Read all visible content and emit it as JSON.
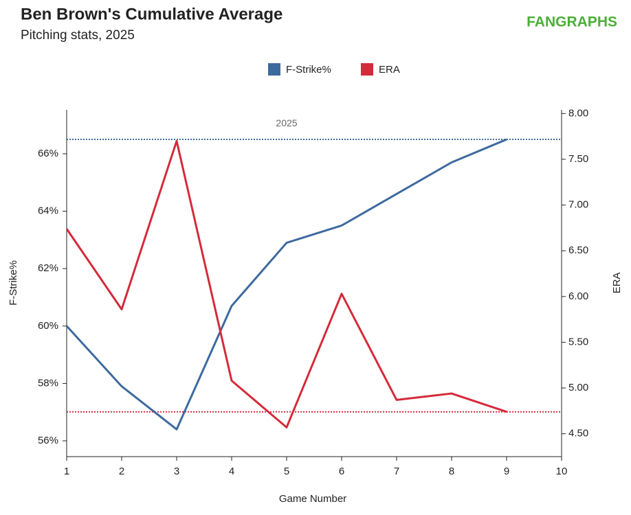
{
  "chart_data": {
    "type": "line",
    "title": "Ben Brown's Cumulative Average",
    "subtitle": "Pitching stats, 2025",
    "logo": "FANGRAPHS",
    "x_label": "Game Number",
    "y_label": "F-Strike%",
    "y2_label": "ERA",
    "x": [
      1,
      2,
      3,
      4,
      5,
      6,
      7,
      8,
      9
    ],
    "xlim": [
      1,
      10
    ],
    "xticks": [
      1,
      2,
      3,
      4,
      5,
      6,
      7,
      8,
      9,
      10
    ],
    "ylim": [
      55.45,
      67.53
    ],
    "yticks": [
      {
        "value": 56,
        "label": "56%"
      },
      {
        "value": 58,
        "label": "58%"
      },
      {
        "value": 60,
        "label": "60%"
      },
      {
        "value": 62,
        "label": "62%"
      },
      {
        "value": 64,
        "label": "64%"
      },
      {
        "value": 66,
        "label": "66%"
      }
    ],
    "y2lim": [
      4.25,
      8.04
    ],
    "y2ticks": [
      {
        "value": 4.5,
        "label": "4.50"
      },
      {
        "value": 5,
        "label": "5.00"
      },
      {
        "value": 5.5,
        "label": "5.50"
      },
      {
        "value": 6,
        "label": "6.00"
      },
      {
        "value": 6.5,
        "label": "6.50"
      },
      {
        "value": 7,
        "label": "7.00"
      },
      {
        "value": 7.5,
        "label": "7.50"
      },
      {
        "value": 8,
        "label": "8.00"
      }
    ],
    "series": [
      {
        "name": "F-Strike%",
        "color": "#3d6a9e",
        "values": [
          60.0,
          57.9,
          56.4,
          60.7,
          62.9,
          63.5,
          64.6,
          65.7,
          66.5
        ]
      },
      {
        "name": "ERA",
        "color": "#d42a3a",
        "axis": "y2",
        "values": [
          6.74,
          5.86,
          7.7,
          5.08,
          4.57,
          6.03,
          4.87,
          4.94,
          4.74
        ]
      }
    ],
    "reference_lines": [
      {
        "label": "2025",
        "value": 66.5,
        "color": "#3d6a9e"
      },
      {
        "value": 4.74,
        "axis": "y2",
        "color": "#d42a3a"
      }
    ]
  }
}
